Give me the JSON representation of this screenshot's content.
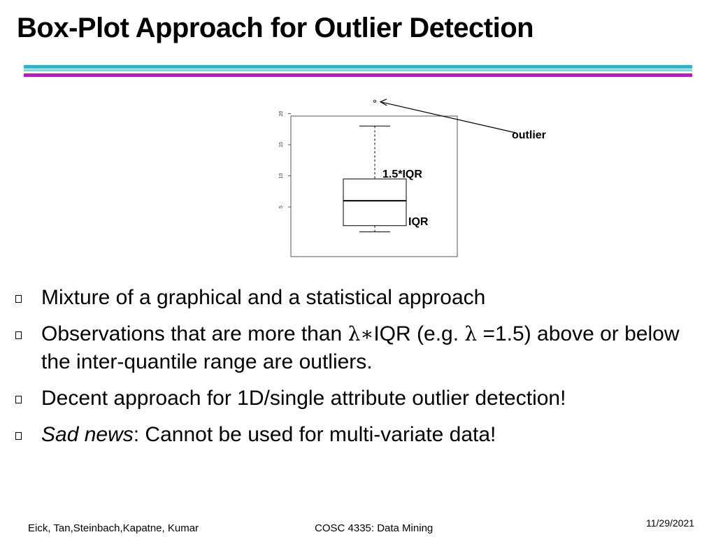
{
  "slide": {
    "title": "Box-Plot Approach for Outlier Detection"
  },
  "chart_data": {
    "type": "box",
    "yticks": [
      "5",
      "10",
      "15",
      "20"
    ],
    "box": {
      "lower_whisker": 1.0,
      "q1": 2.0,
      "median": 6.0,
      "q3": 9.5,
      "upper_whisker": 18.0
    },
    "outliers": [
      22.0
    ],
    "ylim": [
      0,
      24
    ],
    "annotations": {
      "outlier": "outlier",
      "whisker_range": "1.5*IQR",
      "iqr": "IQR"
    },
    "grid": false,
    "legend": "none",
    "colors": {
      "box": "#000000",
      "frame": "#555555",
      "annotation": "#000000"
    }
  },
  "bullets": {
    "b1": "Mixture of a graphical and a statistical approach",
    "b2_pre": "Observations that are more than ",
    "b2_lambda1": "λ∗",
    "b2_mid": "IQR (e.g. ",
    "b2_lambda2": "λ",
    "b2_post": " =1.5) above or below the inter-quantile range are outliers.",
    "b3": "Decent approach for 1D/single attribute outlier detection!",
    "b4_italic": "Sad news",
    "b4_rest": ": Cannot be used for multi-variate data!"
  },
  "footer": {
    "authors": "Eick, Tan,Steinbach,Kapatne, Kumar",
    "course": "COSC 4335: Data Mining",
    "date": "11/29/2021"
  },
  "theme": {
    "rule_colors": [
      "#22b8d6",
      "#7fd6e8",
      "#c218c2"
    ]
  }
}
